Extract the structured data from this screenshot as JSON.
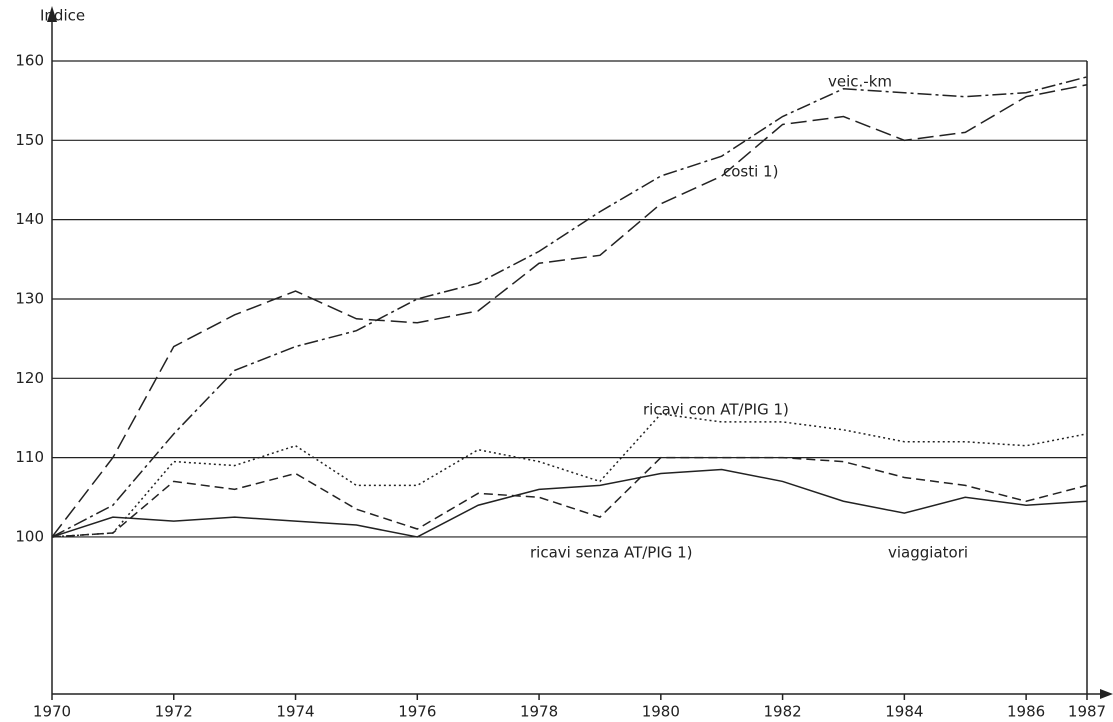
{
  "chart_data": {
    "type": "line",
    "y_label": "Indice",
    "x": [
      1970,
      1971,
      1972,
      1973,
      1974,
      1975,
      1976,
      1977,
      1978,
      1979,
      1980,
      1981,
      1982,
      1983,
      1984,
      1985,
      1986,
      1987
    ],
    "xlim": [
      1970,
      1987
    ],
    "xticks": [
      1970,
      1972,
      1974,
      1976,
      1978,
      1980,
      1982,
      1984,
      1986,
      1987
    ],
    "ylim": [
      80,
      160
    ],
    "yticks": [
      100,
      110,
      120,
      130,
      140,
      150,
      160
    ],
    "grid": true,
    "series": [
      {
        "name": "veic.-km",
        "color": "#222222",
        "values": [
          100,
          104,
          113,
          121,
          124,
          126,
          130,
          132,
          136,
          141,
          145.5,
          148,
          153,
          156.5,
          156,
          155.5,
          156,
          158
        ]
      },
      {
        "name": "costi 1)",
        "color": "#222222",
        "values": [
          100,
          110,
          124,
          128,
          131,
          127.5,
          127,
          128.5,
          134.5,
          135.5,
          142,
          145.5,
          152,
          153,
          150,
          151,
          155.5,
          157
        ]
      },
      {
        "name": "ricavi con AT/PIG 1)",
        "color": "#444444",
        "values": [
          100,
          100.5,
          109.5,
          109,
          111.5,
          106.5,
          106.5,
          111,
          109.5,
          107,
          115.5,
          114.5,
          114.5,
          113.5,
          112,
          112,
          111.5,
          113
        ]
      },
      {
        "name": "ricavi senza AT/PIG 1)",
        "color": "#222222",
        "values": [
          100,
          100.5,
          107,
          106,
          108,
          103.5,
          101,
          105.5,
          105,
          102.5,
          110,
          110,
          110,
          109.5,
          107.5,
          106.5,
          104.5,
          106.5
        ]
      },
      {
        "name": "viaggiatori",
        "color": "#222222",
        "values": [
          100,
          102.5,
          102,
          102.5,
          102,
          101.5,
          100,
          104,
          106,
          106.5,
          108,
          108.5,
          107,
          104.5,
          103,
          105,
          104,
          104.5
        ]
      }
    ]
  }
}
